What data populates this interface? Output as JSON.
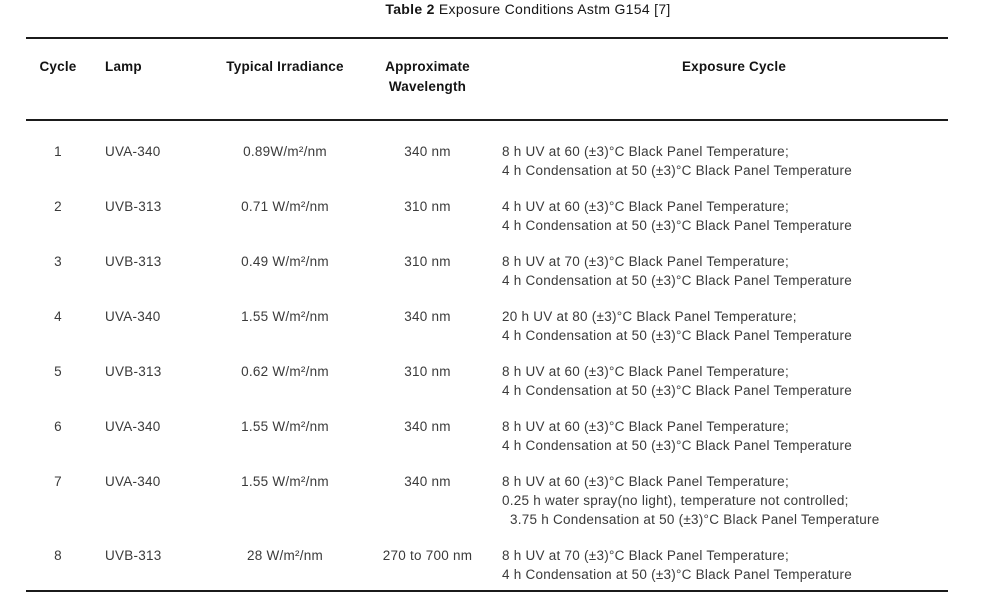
{
  "title": {
    "prefix": "Table 2",
    "rest": " Exposure Conditions Astm G154 [7]"
  },
  "table": {
    "headers": {
      "cycle": "Cycle",
      "lamp": "Lamp",
      "irradiance": "Typical Irradiance",
      "wavelength_line1": "Approximate",
      "wavelength_line2": "Wavelength",
      "exposure": "Exposure Cycle"
    },
    "rows": [
      {
        "cycle": "1",
        "lamp": "UVA-340",
        "irradiance": "0.89W/m²/nm",
        "wavelength": "340 nm",
        "exposure": [
          "8 h UV at 60 (±3)°C Black Panel Temperature;",
          "4 h Condensation at 50 (±3)°C Black Panel Temperature"
        ]
      },
      {
        "cycle": "2",
        "lamp": "UVB-313",
        "irradiance": "0.71 W/m²/nm",
        "wavelength": "310 nm",
        "exposure": [
          "4 h UV at 60 (±3)°C Black Panel Temperature;",
          "4 h Condensation at 50 (±3)°C Black Panel Temperature"
        ]
      },
      {
        "cycle": "3",
        "lamp": "UVB-313",
        "irradiance": "0.49 W/m²/nm",
        "wavelength": "310 nm",
        "exposure": [
          "8 h UV at 70 (±3)°C Black Panel Temperature;",
          "4 h Condensation at 50 (±3)°C Black Panel Temperature"
        ]
      },
      {
        "cycle": "4",
        "lamp": "UVA-340",
        "irradiance": "1.55 W/m²/nm",
        "wavelength": "340 nm",
        "exposure": [
          "20 h UV at 80 (±3)°C Black Panel Temperature;",
          "4 h Condensation at 50 (±3)°C Black Panel Temperature"
        ]
      },
      {
        "cycle": "5",
        "lamp": "UVB-313",
        "irradiance": "0.62 W/m²/nm",
        "wavelength": "310 nm",
        "exposure": [
          "8 h UV at 60 (±3)°C Black Panel Temperature;",
          "4 h Condensation at 50 (±3)°C Black Panel Temperature"
        ]
      },
      {
        "cycle": "6",
        "lamp": "UVA-340",
        "irradiance": "1.55 W/m²/nm",
        "wavelength": "340 nm",
        "exposure": [
          "8 h UV at 60 (±3)°C Black Panel Temperature;",
          "4 h Condensation at 50 (±3)°C Black Panel Temperature"
        ]
      },
      {
        "cycle": "7",
        "lamp": "UVA-340",
        "irradiance": "1.55 W/m²/nm",
        "wavelength": "340 nm",
        "exposure": [
          "8 h UV at 60 (±3)°C Black Panel Temperature;",
          "0.25 h water spray(no light), temperature not controlled;",
          "  3.75 h Condensation at 50 (±3)°C Black Panel Temperature"
        ]
      },
      {
        "cycle": "8",
        "lamp": "UVB-313",
        "irradiance": "28 W/m²/nm",
        "wavelength": "270 to 700 nm",
        "exposure": [
          "8 h UV at 70 (±3)°C Black Panel Temperature;",
          "4 h Condensation at 50 (±3)°C Black Panel Temperature"
        ]
      }
    ]
  },
  "colors": {
    "background": "#ffffff",
    "heading_text": "#131313",
    "body_text": "#3a3a3a",
    "rule": "#1b1b1b"
  }
}
